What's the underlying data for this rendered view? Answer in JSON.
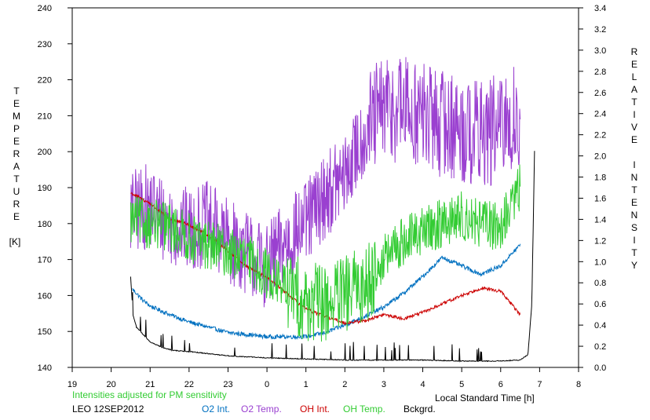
{
  "chart_data": {
    "type": "line",
    "left_axis_label_letters": [
      "T",
      "E",
      "M",
      "P",
      "E",
      "R",
      "A",
      "T",
      "U",
      "R",
      "E"
    ],
    "left_axis_unit": "[K]",
    "right_axis_label_letters": [
      "R",
      "E",
      "L",
      "A",
      "T",
      "I",
      "V",
      "E",
      "",
      "I",
      "N",
      "T",
      "E",
      "N",
      "S",
      "I",
      "T",
      "Y"
    ],
    "xlabel": "Local Standard Time [h]",
    "x_tick_labels": [
      "19",
      "20",
      "21",
      "22",
      "23",
      "0",
      "1",
      "2",
      "3",
      "4",
      "5",
      "6",
      "7",
      "8"
    ],
    "y_left_ticks": [
      "140",
      "150",
      "160",
      "170",
      "180",
      "190",
      "200",
      "210",
      "220",
      "230",
      "240"
    ],
    "y_right_ticks": [
      "0.0",
      "0.2",
      "0.4",
      "0.6",
      "0.8",
      "1.0",
      "1.2",
      "1.4",
      "1.6",
      "1.8",
      "2.0",
      "2.2",
      "2.4",
      "2.6",
      "2.8",
      "3.0",
      "3.2",
      "3.4"
    ],
    "xlim": [
      19,
      32
    ],
    "ylim_left": [
      140,
      240
    ],
    "ylim_right": [
      0,
      3.4
    ],
    "note": "Intensities adjusted for PM sensitivity",
    "station_date": "LEO 12SEP2012",
    "series": [
      {
        "name": "O2 Int.",
        "axis": "right",
        "color": "#0070c0",
        "noise": 0.02,
        "x": [
          20.55,
          20.8,
          21.0,
          21.5,
          22.0,
          22.5,
          23.0,
          23.5,
          24.0,
          24.5,
          25.0,
          25.5,
          26.0,
          26.5,
          27.0,
          27.5,
          28.0,
          28.5,
          29.0,
          29.5,
          30.0,
          30.5
        ],
        "y": [
          0.74,
          0.64,
          0.58,
          0.5,
          0.43,
          0.38,
          0.33,
          0.31,
          0.29,
          0.29,
          0.29,
          0.33,
          0.4,
          0.48,
          0.57,
          0.7,
          0.86,
          1.04,
          0.96,
          0.88,
          0.96,
          1.16
        ]
      },
      {
        "name": "O2 Temp.",
        "axis": "left",
        "color": "#9a40d0",
        "noise": 12,
        "x": [
          20.5,
          21.0,
          21.5,
          22.0,
          22.5,
          23.0,
          23.5,
          24.0,
          24.5,
          25.0,
          25.5,
          26.0,
          26.5,
          27.0,
          27.5,
          28.0,
          28.5,
          29.0,
          29.5,
          30.0,
          30.5
        ],
        "y": [
          183,
          185,
          180,
          178,
          180,
          175,
          172,
          168,
          175,
          180,
          188,
          193,
          205,
          212,
          212,
          210,
          208,
          206,
          205,
          206,
          210
        ]
      },
      {
        "name": "OH Int.",
        "axis": "right",
        "color": "#cc0000",
        "noise": 0.015,
        "x": [
          20.5,
          21.0,
          21.5,
          22.0,
          22.5,
          23.0,
          23.5,
          24.0,
          24.5,
          25.0,
          25.5,
          26.0,
          26.5,
          27.0,
          27.5,
          28.0,
          28.5,
          29.0,
          29.5,
          30.0,
          30.5
        ],
        "y": [
          1.65,
          1.55,
          1.4,
          1.35,
          1.25,
          1.1,
          0.95,
          0.85,
          0.7,
          0.55,
          0.48,
          0.42,
          0.44,
          0.5,
          0.46,
          0.52,
          0.6,
          0.68,
          0.75,
          0.72,
          0.5
        ]
      },
      {
        "name": "OH Temp.",
        "axis": "left",
        "color": "#33cc33",
        "noise": 7,
        "x": [
          20.5,
          21.0,
          21.5,
          22.0,
          22.5,
          23.0,
          23.5,
          24.0,
          24.5,
          25.0,
          25.5,
          26.0,
          26.5,
          27.0,
          27.5,
          28.0,
          28.5,
          29.0,
          29.5,
          30.0,
          30.5
        ],
        "y": [
          181,
          180,
          179,
          176,
          174,
          172,
          170,
          166,
          162,
          158,
          158,
          160,
          163,
          170,
          175,
          178,
          180,
          182,
          180,
          179,
          190
        ]
      },
      {
        "name": "Bckgrd.",
        "axis": "right",
        "color": "#000000",
        "noise": 0.004,
        "x": [
          20.5,
          20.56,
          20.65,
          20.8,
          21.0,
          21.3,
          21.6,
          22.0,
          22.5,
          23.0,
          23.5,
          24.0,
          25.0,
          26.0,
          27.0,
          28.0,
          29.0,
          30.0,
          30.5,
          30.7,
          30.8,
          30.87
        ],
        "y": [
          0.86,
          0.5,
          0.38,
          0.32,
          0.24,
          0.19,
          0.16,
          0.15,
          0.13,
          0.11,
          0.1,
          0.09,
          0.08,
          0.07,
          0.07,
          0.07,
          0.06,
          0.06,
          0.07,
          0.12,
          0.6,
          2.05
        ]
      }
    ]
  }
}
